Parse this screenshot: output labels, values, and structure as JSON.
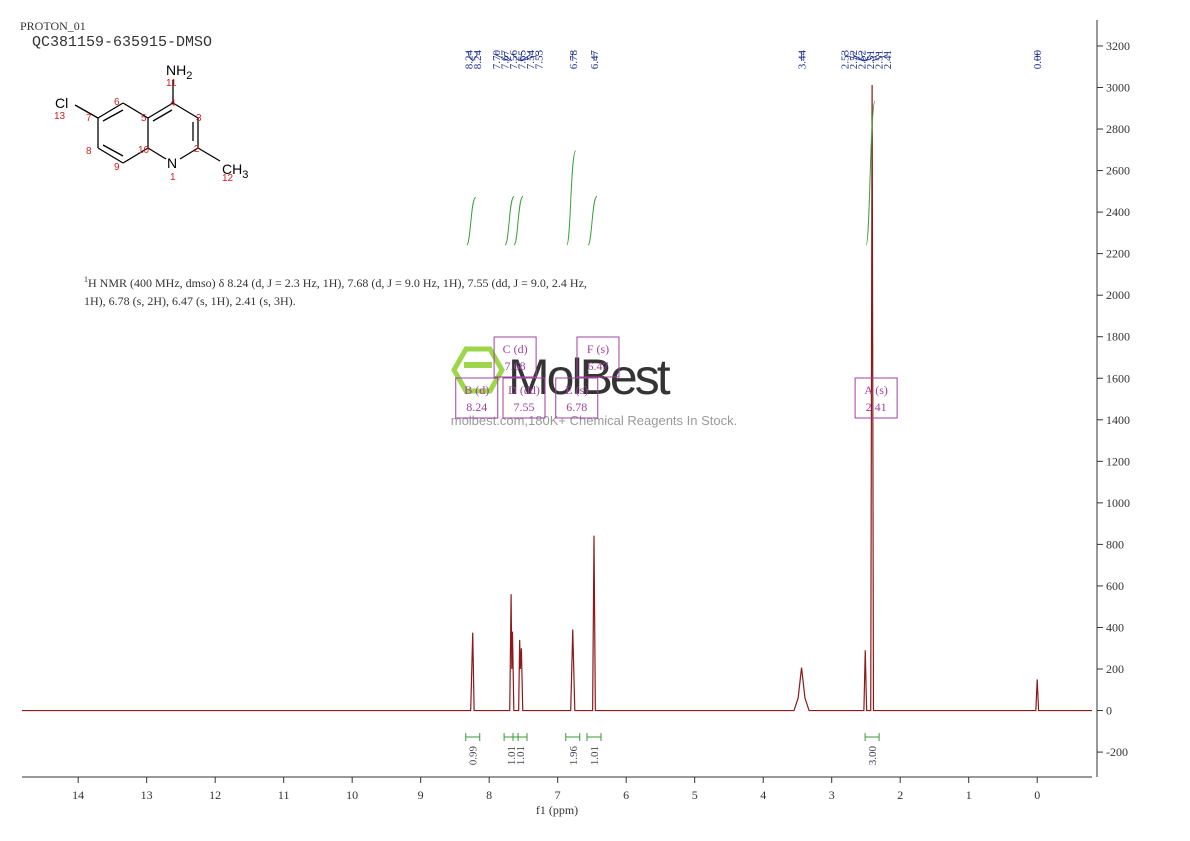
{
  "header": {
    "experiment": "PROTON_01",
    "sample": "QC381159-635915-DMSO"
  },
  "molecule": {
    "groups": [
      "NH",
      "2",
      "Cl",
      "CH",
      "3",
      "N"
    ],
    "atom_numbers": [
      "1",
      "2",
      "3",
      "4",
      "5",
      "6",
      "7",
      "8",
      "9",
      "10",
      "11",
      "12",
      "13"
    ]
  },
  "nmr_text": {
    "sup": "1",
    "lines": [
      "H NMR (400 MHz, dmso) δ 8.24 (d, J = 2.3 Hz, 1H), 7.68 (d, J = 9.0 Hz, 1H), 7.55 (dd, J = 9.0, 2.4 Hz,",
      "1H), 6.78 (s, 2H), 6.47 (s, 1H), 2.41 (s, 3H)."
    ]
  },
  "watermark": {
    "brand": "MolBest",
    "tagline": "molbest.com,180K+ Chemical Reagents In Stock."
  },
  "chart_data": {
    "type": "line",
    "xlabel": "f1 (ppm)",
    "color": "#8b1a1a",
    "x": [
      14.82,
      8.27,
      8.24,
      8.22,
      7.7,
      7.68,
      7.67,
      7.66,
      7.64,
      7.57,
      7.555,
      7.545,
      7.53,
      7.51,
      6.81,
      6.78,
      6.75,
      6.49,
      6.47,
      6.45,
      3.55,
      3.49,
      3.44,
      3.39,
      3.33,
      2.53,
      2.51,
      2.49,
      2.43,
      2.41,
      2.39,
      0.02,
      0.0,
      -0.02,
      -0.8
    ],
    "values": [
      0,
      0,
      375,
      0,
      0,
      560,
      200,
      380,
      0,
      0,
      340,
      200,
      300,
      0,
      0,
      390,
      0,
      0,
      842,
      0,
      0,
      60,
      207,
      60,
      0,
      0,
      290,
      0,
      0,
      3012,
      0,
      0,
      150,
      0,
      0
    ],
    "xlim": [
      14.82,
      -0.8
    ],
    "xticks": [
      14,
      13,
      12,
      11,
      10,
      9,
      8,
      7,
      6,
      5,
      4,
      3,
      2,
      1,
      0
    ],
    "ylim": [
      -320,
      3325
    ],
    "yticks": [
      -200,
      0,
      200,
      400,
      600,
      800,
      1000,
      1200,
      1400,
      1600,
      1800,
      2000,
      2200,
      2400,
      2600,
      2800,
      3000,
      3200
    ],
    "peak_labels": [
      "8.24",
      "8.24",
      "7.70",
      "7.67",
      "7.56",
      "7.55",
      "7.54",
      "7.53",
      "6.78",
      "6.47",
      "3.44",
      "2.53",
      "2.52",
      "2.52",
      "2.51",
      "2.51",
      "2.41",
      "0.00"
    ],
    "integrals": {
      "x": [
        8.24,
        7.68,
        7.55,
        6.78,
        6.47,
        2.41
      ],
      "values": [
        0.99,
        1.01,
        1.01,
        1.96,
        1.01,
        3
      ],
      "value_labels": [
        "0.99",
        "1.01",
        "1.01",
        "1.96",
        "1.01",
        "3.00"
      ]
    },
    "multiplets": [
      {
        "label": "B (d)",
        "shift": "8.24"
      },
      {
        "label": "C (d)",
        "shift": "7.68"
      },
      {
        "label": "D (dd)",
        "shift": "7.55"
      },
      {
        "label": "E (s)",
        "shift": "6.78"
      },
      {
        "label": "F (s)",
        "shift": "6.47"
      },
      {
        "label": "A (s)",
        "shift": "2.41"
      }
    ]
  }
}
